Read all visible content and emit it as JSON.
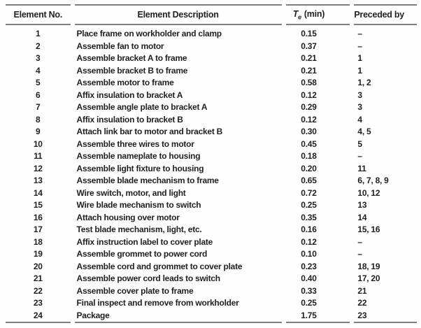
{
  "colors": {
    "text": "#231f20",
    "rule": "#7d7e80",
    "background": "#fefefe"
  },
  "table": {
    "headers": {
      "element_no": "Element No.",
      "description": "Element Description",
      "te_symbol": "T",
      "te_subscript": "e",
      "te_unit": "(min)",
      "preceded_by": "Preceded by"
    },
    "rows": [
      {
        "no": "1",
        "description": "Place frame on workholder and clamp",
        "te": "0.15",
        "preceded_by": "–"
      },
      {
        "no": "2",
        "description": "Assemble fan to motor",
        "te": "0.37",
        "preceded_by": "–"
      },
      {
        "no": "3",
        "description": "Assemble bracket A to frame",
        "te": "0.21",
        "preceded_by": "1"
      },
      {
        "no": "4",
        "description": "Assemble bracket B to frame",
        "te": "0.21",
        "preceded_by": "1"
      },
      {
        "no": "5",
        "description": "Assemble motor to frame",
        "te": "0.58",
        "preceded_by": "1, 2"
      },
      {
        "no": "6",
        "description": "Affix insulation to bracket A",
        "te": "0.12",
        "preceded_by": "3"
      },
      {
        "no": "7",
        "description": "Assemble angle plate to bracket A",
        "te": "0.29",
        "preceded_by": "3"
      },
      {
        "no": "8",
        "description": "Affix insulation to bracket B",
        "te": "0.12",
        "preceded_by": "4"
      },
      {
        "no": "9",
        "description": "Attach link bar to motor and bracket B",
        "te": "0.30",
        "preceded_by": "4, 5"
      },
      {
        "no": "10",
        "description": "Assemble three wires to motor",
        "te": "0.45",
        "preceded_by": "5"
      },
      {
        "no": "11",
        "description": "Assemble nameplate to housing",
        "te": "0.18",
        "preceded_by": "–"
      },
      {
        "no": "12",
        "description": "Assemble light fixture to housing",
        "te": "0.20",
        "preceded_by": "11"
      },
      {
        "no": "13",
        "description": "Assemble blade mechanism to frame",
        "te": "0.65",
        "preceded_by": "6, 7, 8, 9"
      },
      {
        "no": "14",
        "description": "Wire switch, motor, and light",
        "te": "0.72",
        "preceded_by": "10, 12"
      },
      {
        "no": "15",
        "description": "Wire blade mechanism to switch",
        "te": "0.25",
        "preceded_by": "13"
      },
      {
        "no": "16",
        "description": "Attach housing over motor",
        "te": "0.35",
        "preceded_by": "14"
      },
      {
        "no": "17",
        "description": "Test blade mechanism, light, etc.",
        "te": "0.16",
        "preceded_by": "15, 16"
      },
      {
        "no": "18",
        "description": "Affix instruction label to cover plate",
        "te": "0.12",
        "preceded_by": "–"
      },
      {
        "no": "19",
        "description": "Assemble grommet to power cord",
        "te": "0.10",
        "preceded_by": "–"
      },
      {
        "no": "20",
        "description": "Assemble cord and grommet to cover plate",
        "te": "0.23",
        "preceded_by": "18, 19"
      },
      {
        "no": "21",
        "description": "Assemble power cord leads to switch",
        "te": "0.40",
        "preceded_by": "17, 20"
      },
      {
        "no": "22",
        "description": "Assemble cover plate to frame",
        "te": "0.33",
        "preceded_by": "21"
      },
      {
        "no": "23",
        "description": "Final inspect and remove from workholder",
        "te": "0.25",
        "preceded_by": "22"
      },
      {
        "no": "24",
        "description": "Package",
        "te": "1.75",
        "preceded_by": "23"
      }
    ]
  }
}
